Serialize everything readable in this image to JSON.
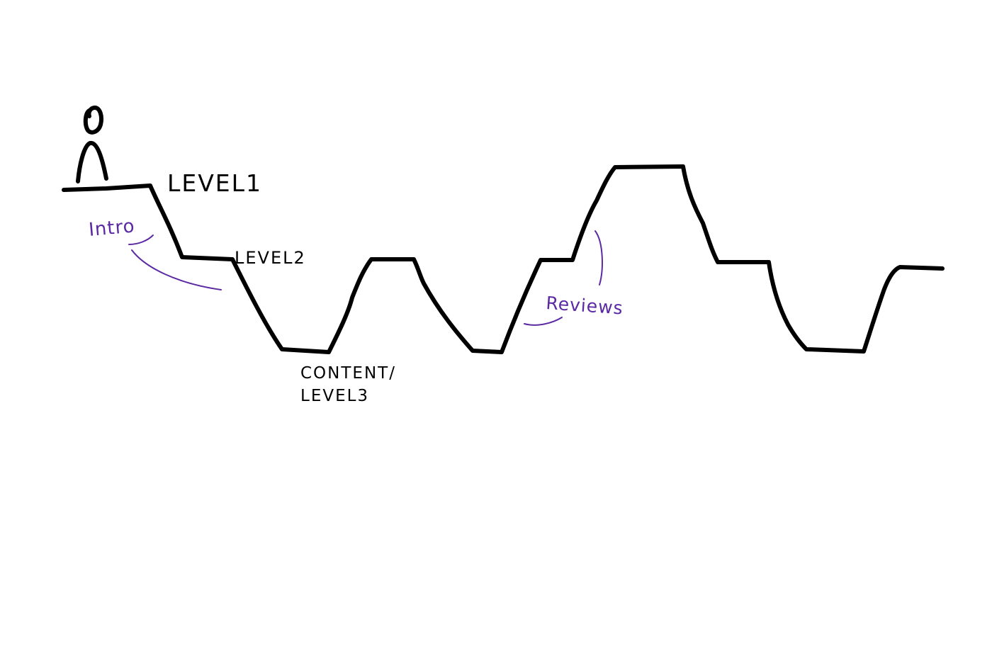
{
  "diagram": {
    "labels": {
      "level1": "LEVEL1",
      "level2": "LEVEL2",
      "content_line1": "CONTENT/",
      "content_line2": "LEVEL3",
      "intro": "Intro",
      "reviews": "Reviews"
    },
    "colors": {
      "ink": "#000000",
      "annotation": "#5b2aa3",
      "background": "#ffffff"
    },
    "icons": {
      "figure": "stick-figure-icon"
    }
  }
}
